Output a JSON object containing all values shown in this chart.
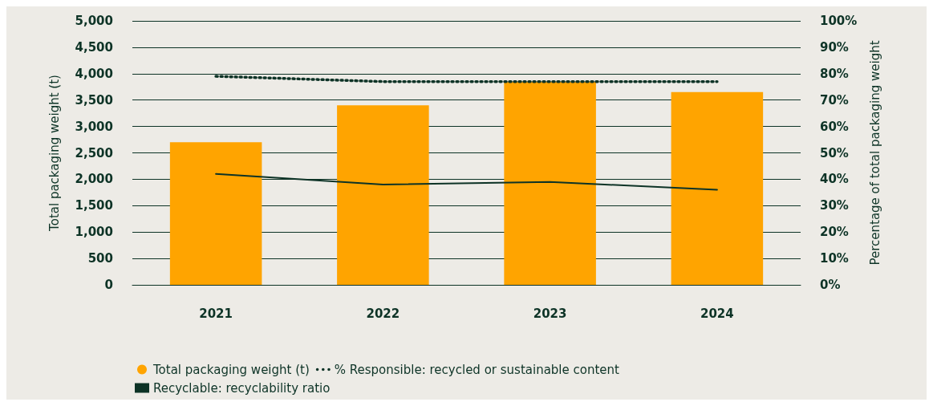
{
  "chart_data": {
    "type": "bar",
    "categories": [
      "2021",
      "2022",
      "2023",
      "2024"
    ],
    "ylabel": "Total packaging weight (t)",
    "y2label": "Percentage of total packaging weight",
    "ylim": [
      0,
      5000
    ],
    "yticks": [
      {
        "value": 0,
        "label": "0"
      },
      {
        "value": 500,
        "label": "500"
      },
      {
        "value": 1000,
        "label": "1,000"
      },
      {
        "value": 1500,
        "label": "1,500"
      },
      {
        "value": 2000,
        "label": "2,000"
      },
      {
        "value": 2500,
        "label": "2,500"
      },
      {
        "value": 3000,
        "label": "3,000"
      },
      {
        "value": 3500,
        "label": "3,500"
      },
      {
        "value": 4000,
        "label": "4,000"
      },
      {
        "value": 4500,
        "label": "4,500"
      },
      {
        "value": 5000,
        "label": "5,000"
      }
    ],
    "y2lim": [
      0,
      100
    ],
    "y2ticks": [
      {
        "value": 0,
        "label": "0%"
      },
      {
        "value": 10,
        "label": "10%"
      },
      {
        "value": 20,
        "label": "20%"
      },
      {
        "value": 30,
        "label": "30%"
      },
      {
        "value": 40,
        "label": "40%"
      },
      {
        "value": 50,
        "label": "50%"
      },
      {
        "value": 60,
        "label": "60%"
      },
      {
        "value": 70,
        "label": "70%"
      },
      {
        "value": 80,
        "label": "80%"
      },
      {
        "value": 90,
        "label": "90%"
      },
      {
        "value": 100,
        "label": "100%"
      }
    ],
    "series": [
      {
        "name": "Total packaging weight (t)",
        "color": "#ffa400",
        "values": [
          2700,
          3400,
          3850,
          3650
        ]
      },
      {
        "name": "% Responsible: recycled or sustainable content",
        "type": "line",
        "axis": "y2",
        "line_style": "dotted",
        "color": "#0d3326",
        "values": [
          79,
          77,
          77,
          77
        ]
      },
      {
        "name": "Recyclable: recyclability ratio",
        "type": "line",
        "axis": "y2",
        "line_style": "solid",
        "color": "#0d3326",
        "values": [
          42,
          38,
          39,
          36
        ]
      }
    ],
    "grid": "y",
    "legend": "bottom"
  }
}
